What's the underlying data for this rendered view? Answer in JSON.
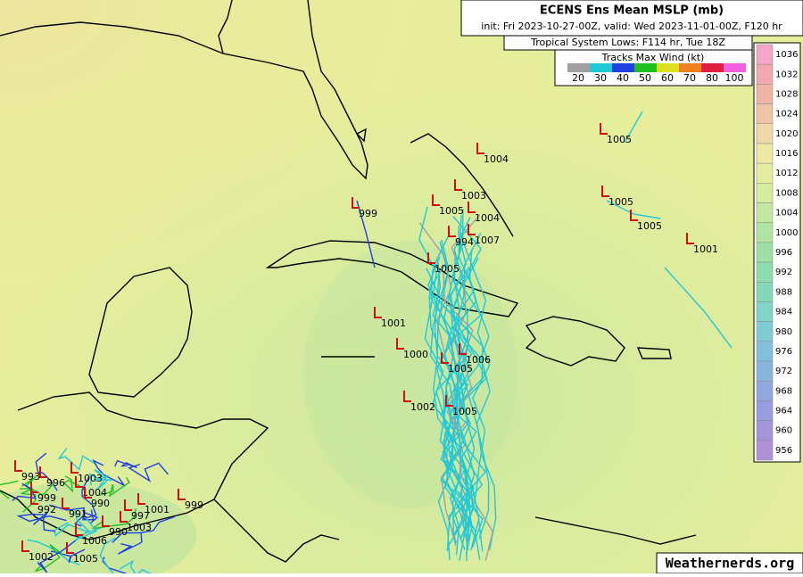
{
  "header": {
    "title": "ECENS Ens Mean MSLP (mb)",
    "subtitle": "init: Fri 2023-10-27-00Z, valid: Wed 2023-11-01-00Z, F120 hr",
    "lows_title": "Tropical System Lows: F114 hr, Tue 18Z"
  },
  "wind_legend": {
    "title": "Tracks Max Wind (kt)",
    "items": [
      {
        "value": 20,
        "color": "#a0a0a0"
      },
      {
        "value": 30,
        "color": "#20c8d8"
      },
      {
        "value": 40,
        "color": "#2040e0"
      },
      {
        "value": 50,
        "color": "#20c020"
      },
      {
        "value": 60,
        "color": "#e0e020"
      },
      {
        "value": 70,
        "color": "#f08020"
      },
      {
        "value": 80,
        "color": "#e02040"
      },
      {
        "value": 100,
        "color": "#f060e0"
      }
    ]
  },
  "colorbar": {
    "ticks": [
      {
        "value": 1036,
        "color": "#f5a5c8"
      },
      {
        "value": 1032,
        "color": "#f2a8b0"
      },
      {
        "value": 1028,
        "color": "#f0b4a4"
      },
      {
        "value": 1024,
        "color": "#f0c4a4"
      },
      {
        "value": 1020,
        "color": "#f0d8a8"
      },
      {
        "value": 1016,
        "color": "#eee8a4"
      },
      {
        "value": 1012,
        "color": "#e4eca0"
      },
      {
        "value": 1008,
        "color": "#d4eca0"
      },
      {
        "value": 1004,
        "color": "#c4e8a0"
      },
      {
        "value": 1000,
        "color": "#b0e4a0"
      },
      {
        "value": 996,
        "color": "#9ce0a4"
      },
      {
        "value": 992,
        "color": "#8cdcac"
      },
      {
        "value": 988,
        "color": "#84d8b8"
      },
      {
        "value": 984,
        "color": "#80d4c8"
      },
      {
        "value": 980,
        "color": "#80ccd4"
      },
      {
        "value": 976,
        "color": "#84c0dc"
      },
      {
        "value": 972,
        "color": "#88b4e0"
      },
      {
        "value": 968,
        "color": "#90a8e0"
      },
      {
        "value": 964,
        "color": "#989ce0"
      },
      {
        "value": 960,
        "color": "#a494dc"
      },
      {
        "value": 956,
        "color": "#b090d8"
      }
    ]
  },
  "lows": [
    1004,
    1005,
    1003,
    1005,
    1004,
    999,
    994,
    1007,
    1005,
    1005,
    1001,
    1005,
    1001,
    1000,
    1006,
    1005,
    1002,
    1005,
    1001,
    999,
    993,
    996,
    1003,
    1004,
    999,
    992,
    990,
    991,
    997,
    990,
    1006,
    1003,
    1002,
    1005
  ],
  "watermark": "Weathernerds.org"
}
